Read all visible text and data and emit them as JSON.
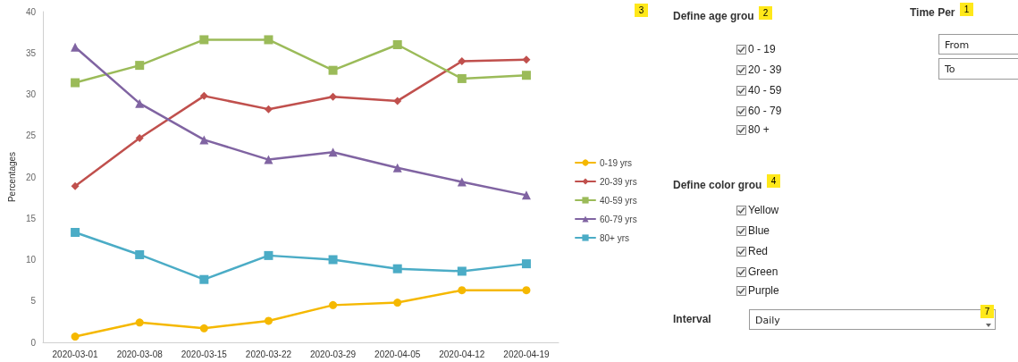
{
  "chart_data": [
    {
      "type": "line",
      "ylabel": "Percentages",
      "categories": [
        "2020-03-01",
        "2020-03-08",
        "2020-03-15",
        "2020-03-22",
        "2020-03-29",
        "2020-04-05",
        "2020-04-12",
        "2020-04-19"
      ],
      "ylim": [
        0,
        40
      ],
      "yticks": [
        0,
        5,
        10,
        15,
        20,
        25,
        30,
        35,
        40
      ],
      "grid": false,
      "legend": "right",
      "line_style": "solid",
      "series": [
        {
          "name": "0-19 yrs",
          "color": "#f5b800",
          "marker": "circle",
          "values": [
            0.7,
            2.4,
            1.7,
            2.6,
            4.5,
            4.8,
            6.3,
            6.3
          ]
        },
        {
          "name": "20-39 yrs",
          "color": "#c0504d",
          "marker": "diamond",
          "values": [
            18.9,
            24.7,
            29.8,
            28.2,
            29.7,
            29.2,
            34.0,
            34.2
          ]
        },
        {
          "name": "40-59 yrs",
          "color": "#9bbb59",
          "marker": "square",
          "values": [
            31.4,
            33.5,
            36.6,
            36.6,
            32.9,
            36.0,
            31.9,
            32.3
          ]
        },
        {
          "name": "60-79 yrs",
          "color": "#8064a2",
          "marker": "triangle",
          "values": [
            35.7,
            28.9,
            24.5,
            22.1,
            23.0,
            21.1,
            19.4,
            17.8
          ]
        },
        {
          "name": "80+ yrs",
          "color": "#4bacc6",
          "marker": "square",
          "values": [
            13.3,
            10.6,
            7.6,
            10.5,
            10.0,
            8.9,
            8.6,
            9.5
          ]
        }
      ]
    },
    {
      "type": "other",
      "annotations": [
        "3",
        "Define age grou",
        "2",
        "0 - 19",
        "20 - 39",
        "40 - 59",
        "60 - 79",
        "80 +",
        "Define color grou",
        "4",
        "Yellow",
        "Blue",
        "Red",
        "Green",
        "Purple",
        "Interval",
        "Daily",
        "7",
        "Time Per",
        "1",
        "From",
        "To"
      ]
    }
  ]
}
